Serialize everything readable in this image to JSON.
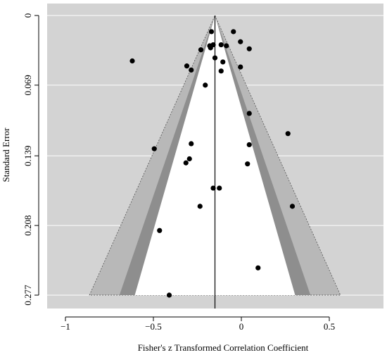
{
  "chart_data": {
    "type": "scatter",
    "subtype": "funnel-plot",
    "title": "",
    "xlabel": "Fisher's z Transformed Correlation Coefficient",
    "ylabel": "Standard Error",
    "xlim": [
      -1.0,
      0.75
    ],
    "ylim": [
      0.277,
      0
    ],
    "y_reversed": true,
    "x_ticks": [
      -1,
      -0.5,
      0,
      0.5
    ],
    "x_tick_labels": [
      "−1",
      "−0.5",
      "0",
      "0.5"
    ],
    "y_ticks": [
      0,
      0.069,
      0.139,
      0.208,
      0.277
    ],
    "y_tick_labels": [
      "0",
      "0.069",
      "0.139",
      "0.208",
      "0.277"
    ],
    "grid": true,
    "reference_line_x": -0.15,
    "contour_levels_z": [
      1.645,
      1.96,
      2.576
    ],
    "colors": {
      "panel": "#d3d3d3",
      "region_outer": "#b8b8b8",
      "region_middle": "#8e8e8e",
      "region_inner": "#ffffff",
      "grid": "#ffffff",
      "points": "#000000"
    },
    "points": [
      {
        "x": -0.17,
        "y": 0.016
      },
      {
        "x": -0.045,
        "y": 0.016
      },
      {
        "x": -0.005,
        "y": 0.026
      },
      {
        "x": -0.18,
        "y": 0.03
      },
      {
        "x": -0.115,
        "y": 0.029
      },
      {
        "x": -0.16,
        "y": 0.029
      },
      {
        "x": -0.175,
        "y": 0.032
      },
      {
        "x": -0.085,
        "y": 0.03
      },
      {
        "x": 0.045,
        "y": 0.033
      },
      {
        "x": -0.23,
        "y": 0.034
      },
      {
        "x": -0.62,
        "y": 0.045
      },
      {
        "x": -0.15,
        "y": 0.042
      },
      {
        "x": -0.105,
        "y": 0.046
      },
      {
        "x": -0.31,
        "y": 0.05
      },
      {
        "x": -0.005,
        "y": 0.051
      },
      {
        "x": -0.285,
        "y": 0.054
      },
      {
        "x": -0.115,
        "y": 0.055
      },
      {
        "x": -0.205,
        "y": 0.069
      },
      {
        "x": 0.045,
        "y": 0.097
      },
      {
        "x": 0.265,
        "y": 0.117
      },
      {
        "x": -0.285,
        "y": 0.127
      },
      {
        "x": 0.045,
        "y": 0.128
      },
      {
        "x": -0.495,
        "y": 0.132
      },
      {
        "x": -0.295,
        "y": 0.142
      },
      {
        "x": -0.315,
        "y": 0.146
      },
      {
        "x": 0.035,
        "y": 0.147
      },
      {
        "x": -0.16,
        "y": 0.171
      },
      {
        "x": -0.125,
        "y": 0.171
      },
      {
        "x": -0.235,
        "y": 0.189
      },
      {
        "x": 0.29,
        "y": 0.189
      },
      {
        "x": -0.465,
        "y": 0.213
      },
      {
        "x": 0.095,
        "y": 0.25
      },
      {
        "x": -0.41,
        "y": 0.277
      }
    ]
  }
}
